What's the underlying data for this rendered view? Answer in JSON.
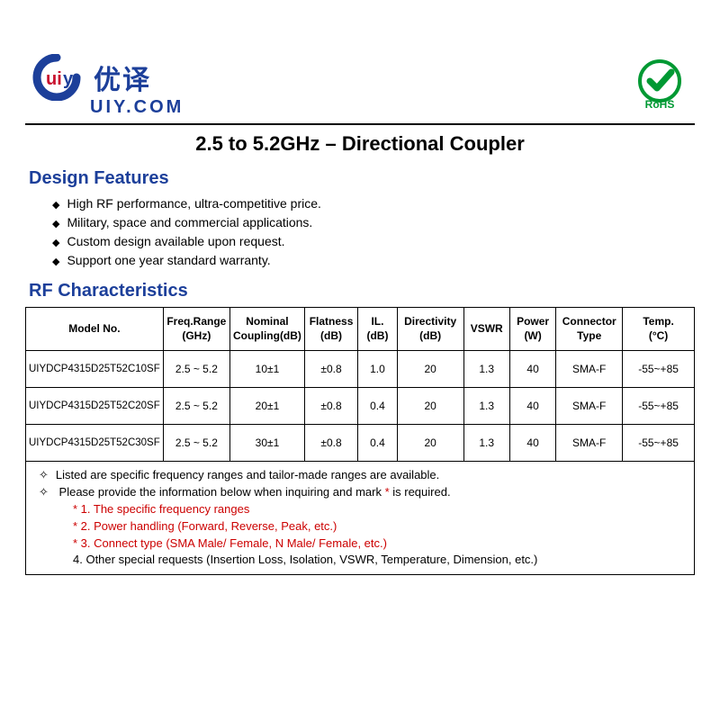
{
  "brand": {
    "chinese": "优译",
    "domain": "UIY.COM",
    "logo_colors": {
      "ring": "#1c3f9a",
      "accent": "#c8102e"
    }
  },
  "rohs": {
    "label": "RoHS",
    "ring_color": "#009933",
    "check_color": "#009933"
  },
  "title": "2.5 to 5.2GHz – Directional Coupler",
  "sections": {
    "design_features": "Design Features",
    "rf_characteristics": "RF Characteristics"
  },
  "features": [
    "High RF performance, ultra-competitive price.",
    "Military, space and commercial applications.",
    "Custom design available upon request.",
    "Support one year standard warranty."
  ],
  "table": {
    "columns": [
      "Model No.",
      "Freq.Range\n(GHz)",
      "Nominal\nCoupling(dB)",
      "Flatness\n(dB)",
      "IL.\n(dB)",
      "Directivity\n(dB)",
      "VSWR",
      "Power\n(W)",
      "Connector\nType",
      "Temp.\n(°C)"
    ],
    "col_widths": [
      "20%",
      "10%",
      "11%",
      "8%",
      "6%",
      "10%",
      "7%",
      "7%",
      "10%",
      "11%"
    ],
    "rows": [
      [
        "UIYDCP4315D25T52C10SF",
        "2.5 ~ 5.2",
        "10±1",
        "±0.8",
        "1.0",
        "20",
        "1.3",
        "40",
        "SMA-F",
        "-55~+85"
      ],
      [
        "UIYDCP4315D25T52C20SF",
        "2.5 ~ 5.2",
        "20±1",
        "±0.8",
        "0.4",
        "20",
        "1.3",
        "40",
        "SMA-F",
        "-55~+85"
      ],
      [
        "UIYDCP4315D25T52C30SF",
        "2.5 ~ 5.2",
        "30±1",
        "±0.8",
        "0.4",
        "20",
        "1.3",
        "40",
        "SMA-F",
        "-55~+85"
      ]
    ]
  },
  "notes": {
    "line1": "Listed are specific frequency ranges and tailor-made ranges are available.",
    "line2_pre": "Please provide the information below when inquiring and mark ",
    "line2_star": "*",
    "line2_post": " is required.",
    "star1": "* 1. The specific frequency ranges",
    "star2": "* 2. Power handling (Forward, Reverse, Peak, etc.)",
    "star3": "* 3. Connect type (SMA Male/ Female, N Male/ Female, etc.)",
    "plain4": "  4. Other special requests (Insertion Loss, Isolation, VSWR, Temperature, Dimension, etc.)"
  }
}
